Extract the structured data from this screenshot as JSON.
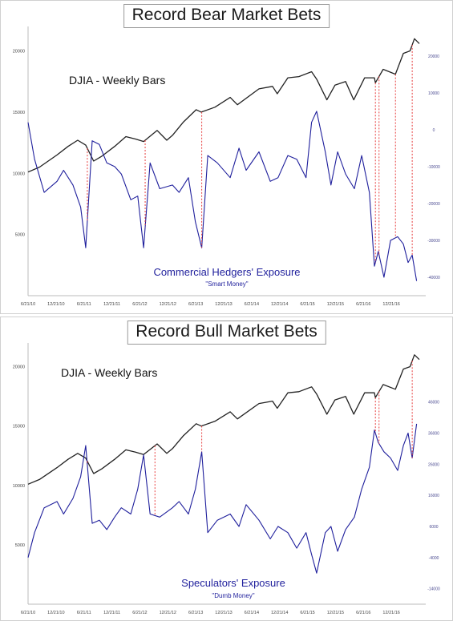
{
  "chart_data": [
    {
      "type": "line",
      "title": "Record Bear Market Bets",
      "price_label": "DJIA - Weekly Bars",
      "exposure_label": "Commercial Hedgers' Exposure",
      "exposure_sublabel": "\"Smart Money\"",
      "x_ticks": [
        "6/21/10",
        "12/21/10",
        "6/21/11",
        "12/21/11",
        "6/21/12",
        "12/21/12",
        "6/21/13",
        "12/21/13",
        "6/21/14",
        "12/21/14",
        "6/21/15",
        "12/21/15",
        "6/21/16",
        "12/21/16"
      ],
      "left_axis": {
        "ticks": [
          5000,
          10000,
          15000,
          20000
        ],
        "range": [
          0,
          22000
        ]
      },
      "right_axis": {
        "ticks": [
          -40000,
          -30000,
          -20000,
          -10000,
          0,
          10000,
          20000
        ],
        "range": [
          -45000,
          28000
        ]
      },
      "series": [
        {
          "name": "DJIA - Weekly Bars",
          "axis": "left",
          "color": "#222222",
          "x": [
            "2010-06-21",
            "2010-09-01",
            "2010-12-21",
            "2011-03-01",
            "2011-05-01",
            "2011-06-21",
            "2011-08-10",
            "2011-10-01",
            "2011-12-21",
            "2012-03-01",
            "2012-05-01",
            "2012-06-21",
            "2012-09-15",
            "2012-11-15",
            "2012-12-21",
            "2013-03-01",
            "2013-05-20",
            "2013-06-21",
            "2013-09-15",
            "2013-12-21",
            "2014-02-05",
            "2014-06-21",
            "2014-09-15",
            "2014-10-15",
            "2014-12-21",
            "2015-03-01",
            "2015-05-20",
            "2015-06-21",
            "2015-08-25",
            "2015-10-15",
            "2015-12-21",
            "2016-02-11",
            "2016-04-20",
            "2016-06-21",
            "2016-06-27",
            "2016-08-15",
            "2016-11-01",
            "2016-12-21",
            "2017-02-01",
            "2017-03-01",
            "2017-04-01"
          ],
          "values": [
            10100,
            10500,
            11500,
            12200,
            12700,
            12300,
            11000,
            11400,
            12200,
            13000,
            12800,
            12600,
            13500,
            12700,
            13100,
            14200,
            15200,
            15000,
            15400,
            16200,
            15600,
            16900,
            17100,
            16500,
            17800,
            17900,
            18300,
            17700,
            16000,
            17200,
            17500,
            16000,
            17800,
            17800,
            17400,
            18500,
            18100,
            19800,
            20000,
            21000,
            20600
          ]
        },
        {
          "name": "Commercial Hedgers' Exposure",
          "axis": "right",
          "color": "#1f1f9c",
          "x": [
            "2010-06-21",
            "2010-08-01",
            "2010-10-01",
            "2010-12-21",
            "2011-02-01",
            "2011-04-01",
            "2011-05-20",
            "2011-06-21",
            "2011-08-01",
            "2011-09-15",
            "2011-11-01",
            "2011-12-21",
            "2012-02-01",
            "2012-04-01",
            "2012-05-15",
            "2012-06-21",
            "2012-08-01",
            "2012-10-01",
            "2012-12-21",
            "2013-02-01",
            "2013-04-01",
            "2013-05-15",
            "2013-06-24",
            "2013-08-01",
            "2013-10-01",
            "2013-12-21",
            "2014-02-15",
            "2014-04-01",
            "2014-06-21",
            "2014-09-01",
            "2014-10-20",
            "2014-12-21",
            "2015-02-15",
            "2015-04-15",
            "2015-05-20",
            "2015-06-21",
            "2015-08-15",
            "2015-09-20",
            "2015-11-01",
            "2015-12-21",
            "2016-02-15",
            "2016-04-01",
            "2016-05-20",
            "2016-06-21",
            "2016-07-15",
            "2016-08-20",
            "2016-10-01",
            "2016-11-15",
            "2016-12-21",
            "2017-01-20",
            "2017-02-15",
            "2017-03-15"
          ],
          "values": [
            2000,
            -8000,
            -17000,
            -14000,
            -11000,
            -15000,
            -21000,
            -32000,
            -3000,
            -4000,
            -9000,
            -10000,
            -12000,
            -19000,
            -18000,
            -32000,
            -9000,
            -16000,
            -15000,
            -17000,
            -13000,
            -25000,
            -32000,
            -7000,
            -9000,
            -13000,
            -5000,
            -11000,
            -6000,
            -14000,
            -13000,
            -7000,
            -8000,
            -13000,
            2000,
            5000,
            -6000,
            -15000,
            -6000,
            -12000,
            -16000,
            -7000,
            -17000,
            -37000,
            -33000,
            -40000,
            -30000,
            -29000,
            -31000,
            -36000,
            -34000,
            -41000
          ]
        }
      ],
      "markers_x": [
        "2011-07-01",
        "2012-07-01",
        "2013-06-24",
        "2016-06-27",
        "2016-07-20",
        "2016-11-01",
        "2017-02-15"
      ]
    },
    {
      "type": "line",
      "title": "Record Bull Market Bets",
      "price_label": "DJIA - Weekly Bars",
      "exposure_label": "Speculators' Exposure",
      "exposure_sublabel": "\"Dumb Money\"",
      "x_ticks": [
        "6/21/10",
        "12/21/10",
        "6/21/11",
        "12/21/11",
        "6/21/12",
        "12/21/12",
        "6/21/13",
        "12/21/13",
        "6/21/14",
        "12/21/14",
        "6/21/15",
        "12/21/15",
        "6/21/16",
        "12/21/16"
      ],
      "left_axis": {
        "ticks": [
          5000,
          10000,
          15000,
          20000
        ],
        "range": [
          0,
          22000
        ]
      },
      "right_axis": {
        "ticks": [
          -14000,
          -4000,
          6000,
          16000,
          26000,
          36000,
          46000
        ],
        "range": [
          -19000,
          65000
        ]
      },
      "series": [
        {
          "name": "DJIA - Weekly Bars",
          "axis": "left",
          "color": "#222222",
          "x": [
            "2010-06-21",
            "2010-09-01",
            "2010-12-21",
            "2011-03-01",
            "2011-05-01",
            "2011-06-21",
            "2011-08-10",
            "2011-10-01",
            "2011-12-21",
            "2012-03-01",
            "2012-05-01",
            "2012-06-21",
            "2012-09-15",
            "2012-11-15",
            "2012-12-21",
            "2013-03-01",
            "2013-05-20",
            "2013-06-21",
            "2013-09-15",
            "2013-12-21",
            "2014-02-05",
            "2014-06-21",
            "2014-09-15",
            "2014-10-15",
            "2014-12-21",
            "2015-03-01",
            "2015-05-20",
            "2015-06-21",
            "2015-08-25",
            "2015-10-15",
            "2015-12-21",
            "2016-02-11",
            "2016-04-20",
            "2016-06-21",
            "2016-06-27",
            "2016-08-15",
            "2016-11-01",
            "2016-12-21",
            "2017-02-01",
            "2017-03-01",
            "2017-04-01"
          ],
          "values": [
            10100,
            10500,
            11500,
            12200,
            12700,
            12300,
            11000,
            11400,
            12200,
            13000,
            12800,
            12600,
            13500,
            12700,
            13100,
            14200,
            15200,
            15000,
            15400,
            16200,
            15600,
            16900,
            17100,
            16500,
            17800,
            17900,
            18300,
            17700,
            16000,
            17200,
            17500,
            16000,
            17800,
            17800,
            17400,
            18500,
            18100,
            19800,
            20000,
            21000,
            20600
          ]
        },
        {
          "name": "Speculators' Exposure",
          "axis": "right",
          "color": "#1f1f9c",
          "x": [
            "2010-06-21",
            "2010-08-01",
            "2010-10-01",
            "2010-12-21",
            "2011-02-01",
            "2011-04-01",
            "2011-05-20",
            "2011-06-21",
            "2011-08-01",
            "2011-09-15",
            "2011-11-01",
            "2011-12-21",
            "2012-02-01",
            "2012-04-01",
            "2012-05-15",
            "2012-06-21",
            "2012-08-01",
            "2012-10-01",
            "2012-12-21",
            "2013-02-01",
            "2013-04-01",
            "2013-05-15",
            "2013-06-24",
            "2013-08-01",
            "2013-10-01",
            "2013-12-21",
            "2014-02-15",
            "2014-04-01",
            "2014-06-21",
            "2014-09-01",
            "2014-10-20",
            "2014-12-21",
            "2015-02-15",
            "2015-04-15",
            "2015-05-20",
            "2015-06-21",
            "2015-08-15",
            "2015-09-20",
            "2015-11-01",
            "2015-12-21",
            "2016-02-15",
            "2016-04-01",
            "2016-05-20",
            "2016-06-21",
            "2016-07-15",
            "2016-08-20",
            "2016-10-01",
            "2016-11-15",
            "2016-12-21",
            "2017-01-20",
            "2017-02-15",
            "2017-03-15"
          ],
          "values": [
            -4000,
            4000,
            12000,
            14000,
            10000,
            15000,
            22000,
            32000,
            7000,
            8000,
            5000,
            9000,
            12000,
            10000,
            18000,
            29000,
            10000,
            9000,
            12000,
            14000,
            10000,
            18000,
            30000,
            4000,
            8000,
            10000,
            6000,
            13000,
            8000,
            2000,
            6000,
            4000,
            -1000,
            4000,
            -3000,
            -9000,
            4000,
            6000,
            -2000,
            5000,
            9000,
            18000,
            25000,
            37000,
            33000,
            30000,
            28000,
            24000,
            32000,
            36000,
            28000,
            39000
          ]
        }
      ],
      "markers_x": [
        "2011-07-01",
        "2012-09-01",
        "2013-06-24",
        "2016-06-27",
        "2016-07-20",
        "2017-02-15"
      ]
    }
  ]
}
